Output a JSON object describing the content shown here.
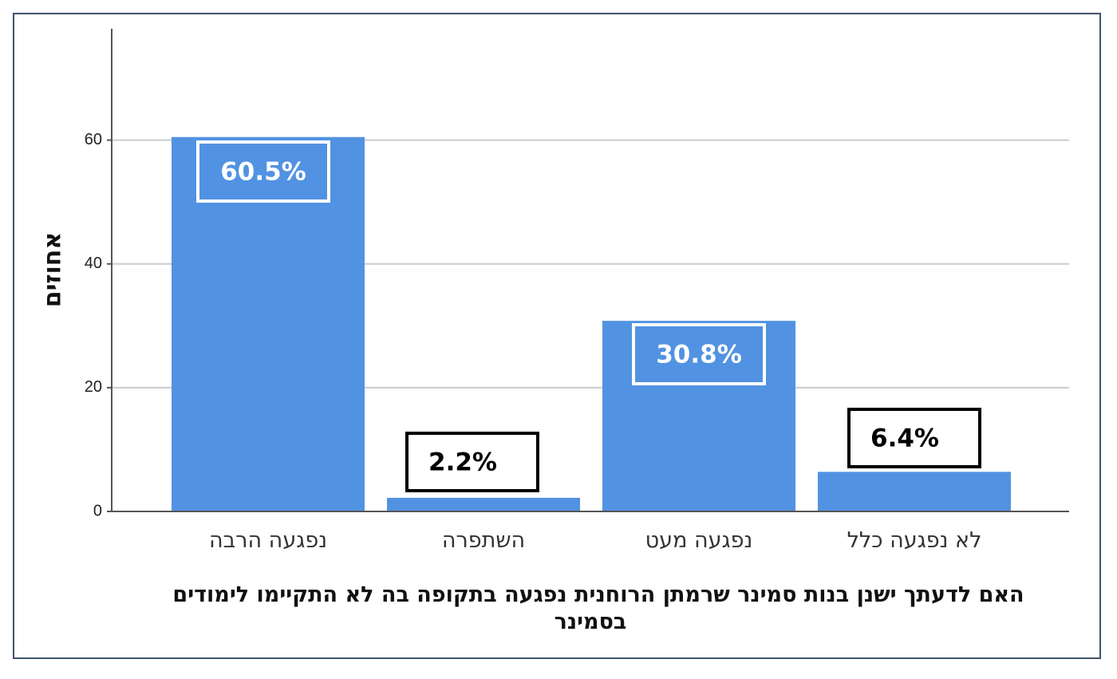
{
  "chart_data": {
    "type": "bar",
    "categories": [
      "נפגעה הרבה",
      "השתפרה",
      "נפגעה מעט",
      "לא נפגעה כלל"
    ],
    "values": [
      60.5,
      2.2,
      30.8,
      6.4
    ],
    "data_labels": [
      "60.5%",
      "2.2%",
      "30.8%",
      "6.4%"
    ],
    "title": "",
    "xlabel_lines": [
      "האם לדעתך ישנן בנות סמינר שרמתן הרוחנית נפגעה בתקופה בה לא התקיימו לימודים",
      "בסמינר"
    ],
    "ylabel": "אחוזים",
    "ylim": [
      0,
      78
    ],
    "yticks": [
      0,
      20,
      40,
      60
    ],
    "grid": true,
    "legend": "none",
    "colors": {
      "bar": "#5292e2",
      "grid": "#cccccc",
      "axis": "#555555",
      "label_inside": "#ffffff",
      "label_outside": "#000000"
    }
  }
}
